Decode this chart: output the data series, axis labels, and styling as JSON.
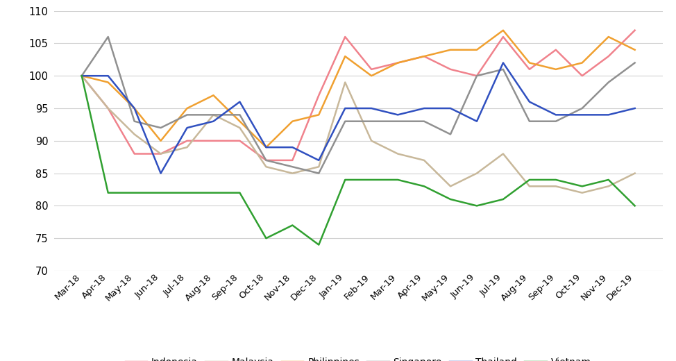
{
  "x_labels": [
    "Mar-18",
    "Apr-18",
    "May-18",
    "Jun-18",
    "Jul-18",
    "Aug-18",
    "Sep-18",
    "Oct-18",
    "Nov-18",
    "Dec-18",
    "Jan-19",
    "Feb-19",
    "Mar-19",
    "Apr-19",
    "May-19",
    "Jun-19",
    "Jul-19",
    "Aug-19",
    "Sep-19",
    "Oct-19",
    "Nov-19",
    "Dec-19"
  ],
  "Indonesia": [
    100,
    95,
    88,
    88,
    90,
    90,
    90,
    87,
    87,
    97,
    106,
    101,
    102,
    103,
    101,
    100,
    106,
    101,
    104,
    100,
    103,
    107
  ],
  "Malaysia": [
    100,
    95,
    91,
    88,
    89,
    94,
    92,
    86,
    85,
    86,
    99,
    90,
    88,
    87,
    83,
    85,
    88,
    83,
    83,
    82,
    83,
    85
  ],
  "Philippines": [
    100,
    99,
    95,
    90,
    95,
    97,
    93,
    89,
    93,
    94,
    103,
    100,
    102,
    103,
    104,
    104,
    107,
    102,
    101,
    102,
    106,
    104
  ],
  "Singapore": [
    100,
    106,
    93,
    92,
    94,
    94,
    94,
    87,
    86,
    85,
    93,
    93,
    93,
    93,
    91,
    100,
    101,
    93,
    93,
    95,
    99,
    102
  ],
  "Thailand": [
    100,
    100,
    95,
    85,
    92,
    93,
    96,
    89,
    89,
    87,
    95,
    95,
    94,
    95,
    95,
    93,
    102,
    96,
    94,
    94,
    94,
    95
  ],
  "Vietnam": [
    100,
    82,
    82,
    82,
    82,
    82,
    82,
    75,
    77,
    74,
    84,
    84,
    84,
    83,
    81,
    80,
    81,
    84,
    84,
    83,
    84,
    80
  ],
  "colors": {
    "Indonesia": "#f0828c",
    "Malaysia": "#c8b89a",
    "Philippines": "#f0a030",
    "Singapore": "#909090",
    "Thailand": "#3050c0",
    "Vietnam": "#30a030"
  },
  "ylim": [
    70,
    110
  ],
  "yticks": [
    70,
    75,
    80,
    85,
    90,
    95,
    100,
    105,
    110
  ],
  "background_color": "#ffffff",
  "grid_color": "#d0d0d0"
}
